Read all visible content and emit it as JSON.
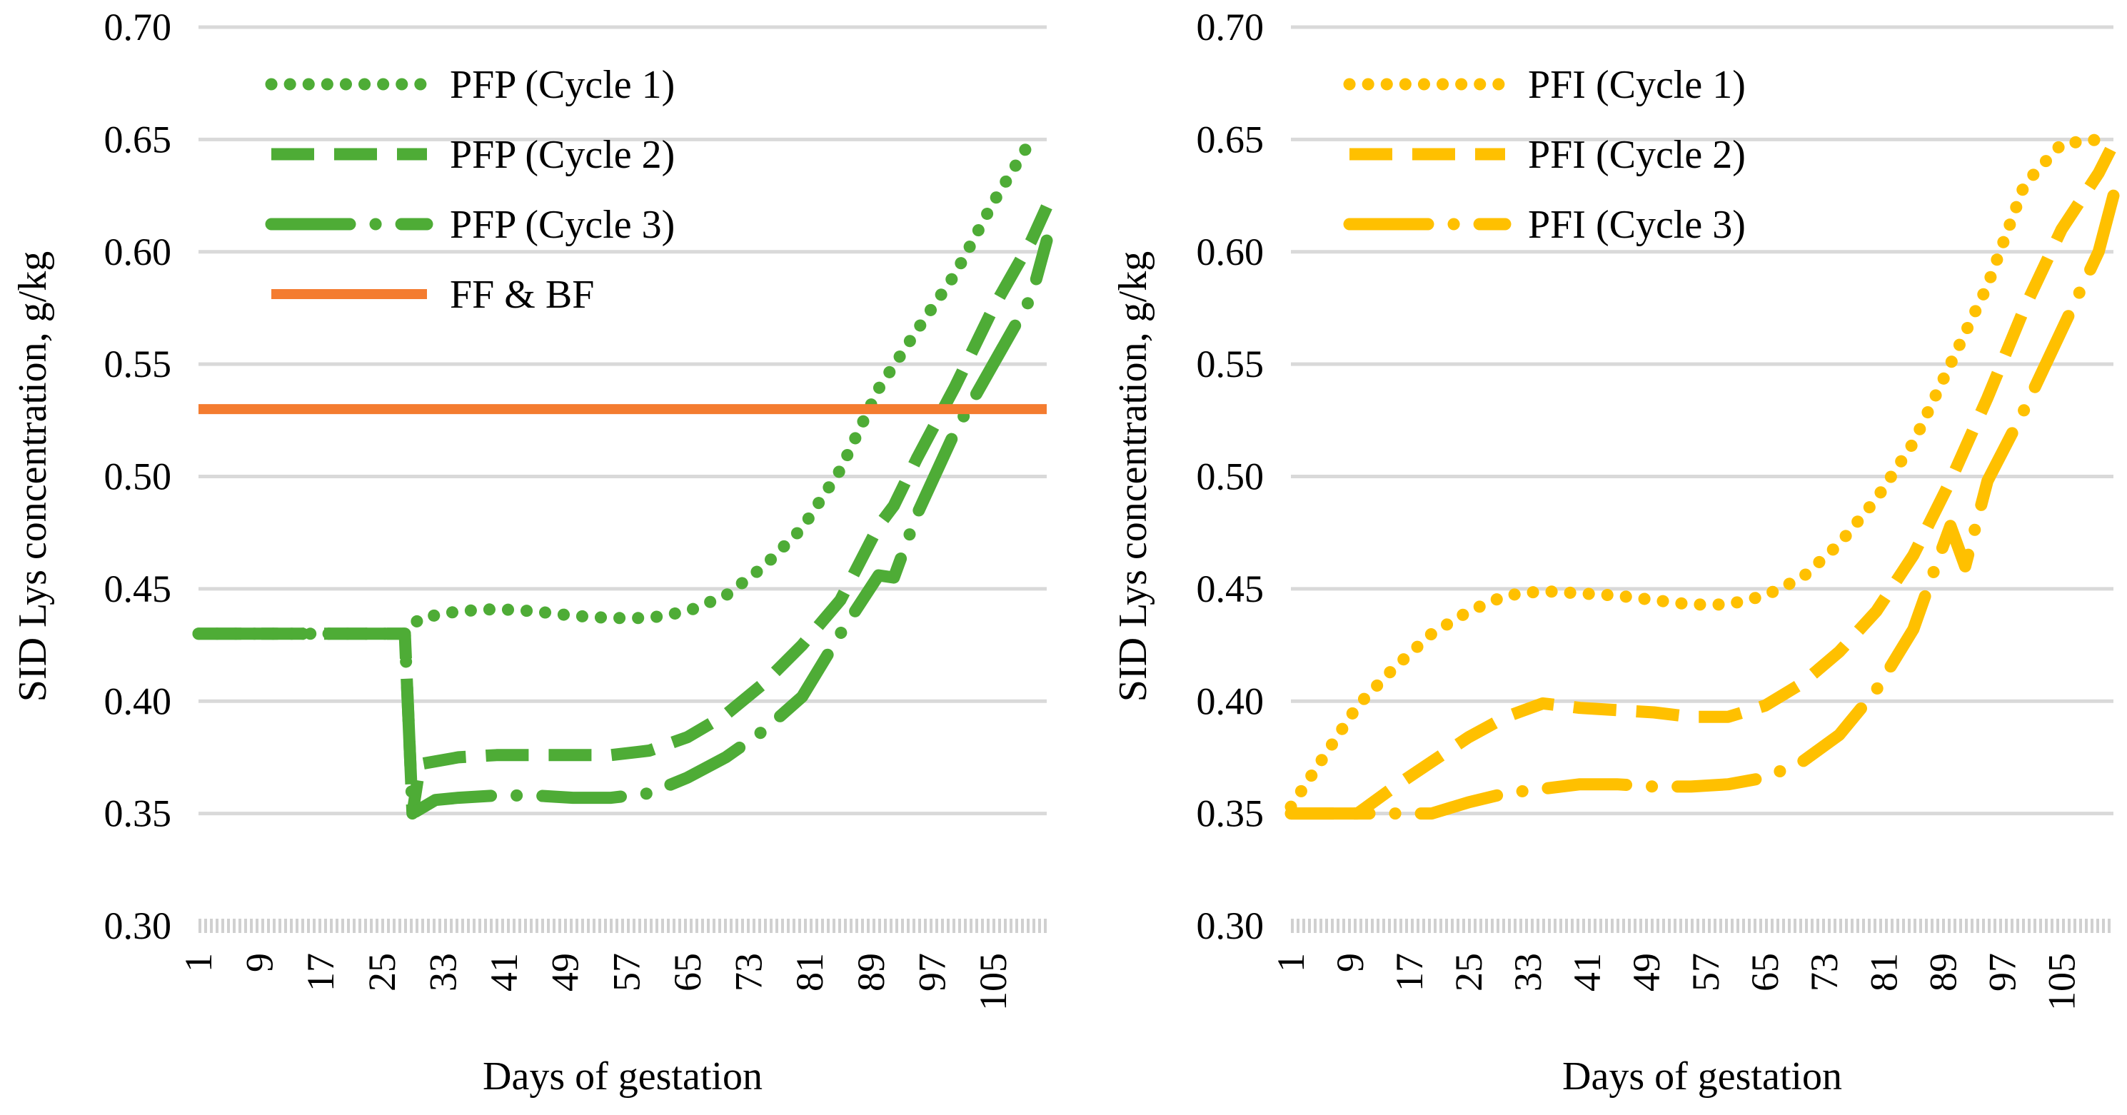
{
  "chart_data": [
    {
      "type": "line",
      "title": "",
      "xlabel": "Days of gestation",
      "ylabel": "SID Lys concentration, g/kg",
      "ylim": [
        0.3,
        0.7
      ],
      "yticks": [
        "0.30",
        "0.35",
        "0.40",
        "0.45",
        "0.50",
        "0.55",
        "0.60",
        "0.65",
        "0.70"
      ],
      "xlim": [
        1,
        112
      ],
      "xticks": [
        "1",
        "9",
        "17",
        "25",
        "33",
        "41",
        "49",
        "57",
        "65",
        "73",
        "81",
        "89",
        "97",
        "105"
      ],
      "legend_position": "top-left",
      "series": [
        {
          "name": "PFP (Cycle 1)",
          "color": "#4EAC36",
          "style": "dotted",
          "x": [
            1,
            28,
            28,
            30,
            35,
            40,
            45,
            50,
            55,
            60,
            65,
            70,
            75,
            80,
            85,
            90,
            95,
            100,
            105,
            110
          ],
          "y": [
            0.43,
            0.43,
            0.43,
            0.437,
            0.44,
            0.441,
            0.44,
            0.438,
            0.437,
            0.437,
            0.44,
            0.447,
            0.46,
            0.477,
            0.503,
            0.539,
            0.565,
            0.59,
            0.622,
            0.65
          ]
        },
        {
          "name": "PFP (Cycle 2)",
          "color": "#4EAC36",
          "style": "dashed",
          "x": [
            1,
            28,
            29,
            30,
            35,
            40,
            45,
            50,
            55,
            60,
            65,
            70,
            75,
            80,
            85,
            90,
            92,
            95,
            100,
            105,
            110,
            112
          ],
          "y": [
            0.43,
            0.43,
            0.35,
            0.372,
            0.375,
            0.376,
            0.376,
            0.376,
            0.376,
            0.378,
            0.384,
            0.394,
            0.408,
            0.425,
            0.445,
            0.478,
            0.487,
            0.508,
            0.54,
            0.575,
            0.605,
            0.62
          ]
        },
        {
          "name": "PFP (Cycle 3)",
          "color": "#4EAC36",
          "style": "longdash",
          "x": [
            1,
            28,
            29,
            32,
            35,
            40,
            45,
            50,
            55,
            60,
            65,
            70,
            75,
            80,
            85,
            90,
            92,
            95,
            100,
            105,
            110,
            112
          ],
          "y": [
            0.43,
            0.43,
            0.35,
            0.356,
            0.357,
            0.358,
            0.358,
            0.357,
            0.357,
            0.359,
            0.366,
            0.375,
            0.387,
            0.402,
            0.43,
            0.456,
            0.455,
            0.483,
            0.52,
            0.55,
            0.58,
            0.605
          ]
        },
        {
          "name": "FF & BF",
          "color": "#F47C30",
          "style": "solid",
          "x": [
            1,
            112
          ],
          "y": [
            0.53,
            0.53
          ]
        }
      ]
    },
    {
      "type": "line",
      "title": "",
      "xlabel": "Days of gestation",
      "ylabel": "SID Lys concentration, g/kg",
      "ylim": [
        0.3,
        0.7
      ],
      "yticks": [
        "0.30",
        "0.35",
        "0.40",
        "0.45",
        "0.50",
        "0.55",
        "0.60",
        "0.65",
        "0.70"
      ],
      "xlim": [
        1,
        112
      ],
      "xticks": [
        "1",
        "9",
        "17",
        "25",
        "33",
        "41",
        "49",
        "57",
        "65",
        "73",
        "81",
        "89",
        "97",
        "105"
      ],
      "legend_position": "top-left",
      "series": [
        {
          "name": "PFI (Cycle 1)",
          "color": "#FFC000",
          "style": "dotted",
          "x": [
            1,
            5,
            10,
            15,
            20,
            25,
            30,
            35,
            40,
            45,
            50,
            55,
            60,
            65,
            70,
            75,
            80,
            85,
            90,
            95,
            100,
            105,
            110
          ],
          "y": [
            0.353,
            0.373,
            0.398,
            0.415,
            0.43,
            0.44,
            0.447,
            0.449,
            0.448,
            0.447,
            0.445,
            0.443,
            0.443,
            0.447,
            0.455,
            0.47,
            0.49,
            0.515,
            0.55,
            0.585,
            0.63,
            0.648,
            0.65
          ]
        },
        {
          "name": "PFI (Cycle 2)",
          "color": "#FFC000",
          "style": "dashed",
          "x": [
            1,
            5,
            10,
            15,
            20,
            25,
            30,
            35,
            40,
            45,
            50,
            55,
            60,
            65,
            70,
            75,
            80,
            85,
            90,
            95,
            100,
            105,
            110,
            112
          ],
          "y": [
            0.35,
            0.35,
            0.35,
            0.362,
            0.373,
            0.384,
            0.393,
            0.399,
            0.397,
            0.396,
            0.395,
            0.393,
            0.393,
            0.398,
            0.408,
            0.422,
            0.44,
            0.465,
            0.498,
            0.535,
            0.575,
            0.61,
            0.635,
            0.648
          ]
        },
        {
          "name": "PFI (Cycle 3)",
          "color": "#FFC000",
          "style": "longdash",
          "x": [
            1,
            10,
            15,
            20,
            25,
            30,
            35,
            40,
            45,
            50,
            55,
            60,
            65,
            70,
            75,
            80,
            85,
            88,
            90,
            92,
            95,
            100,
            105,
            110,
            112
          ],
          "y": [
            0.35,
            0.35,
            0.35,
            0.35,
            0.355,
            0.359,
            0.361,
            0.363,
            0.363,
            0.362,
            0.362,
            0.363,
            0.366,
            0.373,
            0.385,
            0.405,
            0.432,
            0.46,
            0.478,
            0.46,
            0.498,
            0.53,
            0.565,
            0.6,
            0.625
          ]
        }
      ]
    }
  ]
}
